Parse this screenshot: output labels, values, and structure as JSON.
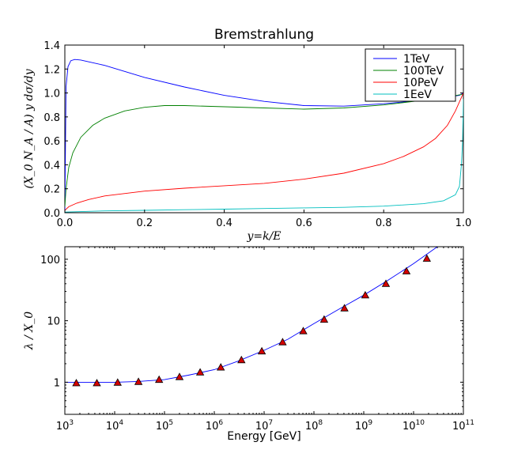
{
  "chart_data": [
    {
      "type": "line",
      "title": "Bremstrahlung",
      "xlabel": "y=k/E",
      "ylabel": "(X_0 N_A / A) y dσ/dy",
      "xlim": [
        0.0,
        1.0
      ],
      "ylim": [
        0.0,
        1.4
      ],
      "xticks": [
        "0.0",
        "0.2",
        "0.4",
        "0.6",
        "0.8",
        "1.0"
      ],
      "yticks": [
        "0.0",
        "0.2",
        "0.4",
        "0.6",
        "0.8",
        "1.0",
        "1.2",
        "1.4"
      ],
      "grid": false,
      "legend_position": "top-right",
      "series": [
        {
          "name": "1TeV",
          "color": "#0000ff",
          "x": [
            0.0,
            0.003,
            0.008,
            0.015,
            0.025,
            0.04,
            0.06,
            0.1,
            0.15,
            0.2,
            0.3,
            0.4,
            0.5,
            0.6,
            0.7,
            0.8,
            0.9,
            0.95,
            0.99,
            1.0
          ],
          "y": [
            0.0,
            1.05,
            1.22,
            1.27,
            1.28,
            1.275,
            1.26,
            1.23,
            1.18,
            1.13,
            1.05,
            0.98,
            0.93,
            0.895,
            0.89,
            0.91,
            0.94,
            0.96,
            0.98,
            1.0
          ]
        },
        {
          "name": "100TeV",
          "color": "#008000",
          "x": [
            0.0,
            0.003,
            0.01,
            0.02,
            0.04,
            0.07,
            0.1,
            0.15,
            0.2,
            0.25,
            0.3,
            0.4,
            0.5,
            0.6,
            0.7,
            0.8,
            0.9,
            0.95,
            1.0
          ],
          "y": [
            0.05,
            0.2,
            0.38,
            0.5,
            0.63,
            0.73,
            0.79,
            0.85,
            0.88,
            0.895,
            0.895,
            0.885,
            0.875,
            0.865,
            0.875,
            0.9,
            0.94,
            0.96,
            0.99
          ]
        },
        {
          "name": "10PeV",
          "color": "#ff0000",
          "x": [
            0.0,
            0.01,
            0.03,
            0.06,
            0.1,
            0.2,
            0.3,
            0.4,
            0.5,
            0.6,
            0.7,
            0.8,
            0.85,
            0.9,
            0.93,
            0.96,
            0.98,
            1.0
          ],
          "y": [
            0.02,
            0.05,
            0.08,
            0.11,
            0.14,
            0.18,
            0.205,
            0.225,
            0.245,
            0.28,
            0.33,
            0.41,
            0.47,
            0.55,
            0.62,
            0.73,
            0.85,
            1.0
          ]
        },
        {
          "name": "1EeV",
          "color": "#00bfbf",
          "x": [
            0.0,
            0.1,
            0.2,
            0.3,
            0.4,
            0.5,
            0.6,
            0.7,
            0.8,
            0.9,
            0.95,
            0.98,
            0.99,
            0.995,
            0.998,
            1.0
          ],
          "y": [
            0.005,
            0.015,
            0.02,
            0.025,
            0.03,
            0.035,
            0.04,
            0.045,
            0.055,
            0.075,
            0.1,
            0.15,
            0.22,
            0.4,
            0.6,
            0.95
          ]
        }
      ]
    },
    {
      "type": "line",
      "title": "",
      "xlabel": "Energy [GeV]",
      "ylabel": "λ / X_0",
      "xscale": "log",
      "yscale": "log",
      "xlim": [
        1000,
        100000000000
      ],
      "ylim": [
        0.3,
        160
      ],
      "xticks": [
        "10^3",
        "10^4",
        "10^5",
        "10^6",
        "10^7",
        "10^8",
        "10^9",
        "10^10",
        "10^11"
      ],
      "yticks": [
        "1",
        "10",
        "100"
      ],
      "grid": false,
      "series": [
        {
          "style": "line",
          "color": "#0000ff",
          "x": [
            1000,
            2000,
            5000,
            10000,
            30000,
            100000,
            300000,
            1000000,
            3000000,
            10000000,
            30000000,
            100000000,
            300000000,
            1000000000,
            3000000000,
            10000000000,
            30000000000
          ],
          "y": [
            1.0,
            1.0,
            1.0,
            1.0,
            1.03,
            1.1,
            1.3,
            1.6,
            2.2,
            3.3,
            5.0,
            9.0,
            15.0,
            26.0,
            45.0,
            85.0,
            160.0
          ]
        },
        {
          "style": "markers",
          "marker": "triangle",
          "color": "#d40000",
          "x": [
            1700,
            4400,
            11500,
            30000,
            78000,
            200000,
            520000,
            1350000,
            3500000,
            9000000,
            23500000,
            61000000,
            160000000,
            410000000,
            1070000000,
            2780000000,
            7200000000,
            18500000000
          ],
          "y": [
            0.97,
            0.97,
            0.99,
            1.02,
            1.1,
            1.22,
            1.45,
            1.75,
            2.3,
            3.2,
            4.5,
            6.8,
            10.5,
            16.0,
            26.0,
            40.0,
            64.0,
            103.0
          ]
        }
      ]
    }
  ]
}
